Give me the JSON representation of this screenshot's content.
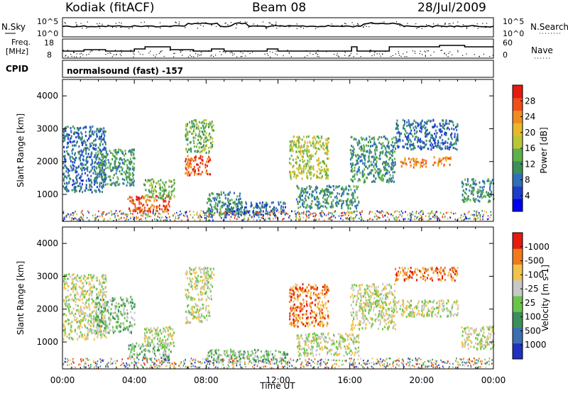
{
  "header": {
    "station": "Kodiak (fitACF)",
    "beam": "Beam 08",
    "date": "28/Jul/2009"
  },
  "status_panels": {
    "nsky_label": "N.Sky",
    "nsearch_label": "N.Search",
    "freq_label_line1": "Freq.",
    "freq_label_line2": "[MHz]",
    "nave_label": "Nave",
    "noise_ticks_left": [
      "10^5",
      "10^0"
    ],
    "noise_ticks_right": [
      "10^5",
      "10^0"
    ],
    "freq_ticks_left": [
      "18",
      "8"
    ],
    "nave_ticks_right": [
      "60",
      "0"
    ],
    "cpid_label": "CPID",
    "cpid_text": "normalsound (fast) -157"
  },
  "chart_data": [
    {
      "type": "heatmap",
      "name_hint": "power",
      "xlabel": "",
      "ylabel": "Slant Range [km]",
      "xlim_hours": [
        0,
        24
      ],
      "ylim_km": [
        180,
        4500
      ],
      "yticks": [
        "1000",
        "2000",
        "3000",
        "4000"
      ],
      "xticks": [
        "00:00",
        "04:00",
        "08:00",
        "12:00",
        "16:00",
        "20:00",
        "00:00"
      ],
      "colorbar_label": "Power [dB]",
      "colorbar_ticks": [
        "4",
        "8",
        "12",
        "16",
        "20",
        "24",
        "28"
      ],
      "colorbar_colors": [
        "#0000f0",
        "#1e3ccd",
        "#2f6fb8",
        "#3b8f5a",
        "#5fb049",
        "#b8c637",
        "#e7b92a",
        "#f08c1f",
        "#ef4e18",
        "#e51a10"
      ],
      "echo_regions": [
        {
          "t0": 0.0,
          "t1": 2.4,
          "r0": 1100,
          "r1": 3100,
          "level": 2
        },
        {
          "t0": 1.8,
          "t1": 4.0,
          "r0": 1300,
          "r1": 2400,
          "level": 3
        },
        {
          "t0": 3.6,
          "t1": 6.0,
          "r0": 500,
          "r1": 1000,
          "level": 8
        },
        {
          "t0": 4.5,
          "t1": 6.2,
          "r0": 900,
          "r1": 1500,
          "level": 4
        },
        {
          "t0": 6.8,
          "t1": 8.2,
          "r0": 1600,
          "r1": 2200,
          "level": 8
        },
        {
          "t0": 6.8,
          "t1": 8.4,
          "r0": 2300,
          "r1": 3300,
          "level": 4
        },
        {
          "t0": 8.0,
          "t1": 10.0,
          "r0": 400,
          "r1": 1100,
          "level": 3
        },
        {
          "t0": 9.0,
          "t1": 12.5,
          "r0": 400,
          "r1": 800,
          "level": 2
        },
        {
          "t0": 12.6,
          "t1": 14.8,
          "r0": 1500,
          "r1": 2800,
          "level": 5
        },
        {
          "t0": 13.0,
          "t1": 16.5,
          "r0": 600,
          "r1": 1300,
          "level": 3
        },
        {
          "t0": 16.0,
          "t1": 18.5,
          "r0": 1400,
          "r1": 2800,
          "level": 3
        },
        {
          "t0": 18.8,
          "t1": 20.3,
          "r0": 1850,
          "r1": 2150,
          "level": 7
        },
        {
          "t0": 20.6,
          "t1": 21.6,
          "r0": 1900,
          "r1": 2200,
          "level": 7
        },
        {
          "t0": 18.5,
          "t1": 22.0,
          "r0": 2400,
          "r1": 3300,
          "level": 2
        },
        {
          "t0": 22.2,
          "t1": 24.0,
          "r0": 800,
          "r1": 1500,
          "level": 3
        }
      ]
    },
    {
      "type": "heatmap",
      "name_hint": "velocity",
      "xlabel": "Time UT",
      "ylabel": "Slant Range [km]",
      "xlim_hours": [
        0,
        24
      ],
      "ylim_km": [
        180,
        4500
      ],
      "yticks": [
        "1000",
        "2000",
        "3000",
        "4000"
      ],
      "xticks": [
        "00:00",
        "04:00",
        "08:00",
        "12:00",
        "16:00",
        "20:00",
        "00:00"
      ],
      "colorbar_label": "Velocity [m s-1]",
      "colorbar_ticks": [
        "1000",
        "500",
        "100",
        "25",
        "-25",
        "-100",
        "-500",
        "-1000"
      ],
      "colorbar_colors": [
        "#2030c0",
        "#3a6fb0",
        "#3b8f5a",
        "#6ac44a",
        "#c8c8c8",
        "#f0c44a",
        "#f07a1a",
        "#e51a10"
      ],
      "echo_regions": [
        {
          "t0": 0.0,
          "t1": 2.4,
          "r0": 1100,
          "r1": 3100,
          "level": 4
        },
        {
          "t0": 1.8,
          "t1": 4.0,
          "r0": 1300,
          "r1": 2400,
          "level": 3
        },
        {
          "t0": 3.6,
          "t1": 6.0,
          "r0": 500,
          "r1": 1000,
          "level": 3
        },
        {
          "t0": 4.5,
          "t1": 6.2,
          "r0": 900,
          "r1": 1500,
          "level": 4
        },
        {
          "t0": 6.8,
          "t1": 8.2,
          "r0": 1600,
          "r1": 2200,
          "level": 4
        },
        {
          "t0": 6.8,
          "t1": 8.4,
          "r0": 2300,
          "r1": 3300,
          "level": 4
        },
        {
          "t0": 8.0,
          "t1": 12.5,
          "r0": 400,
          "r1": 800,
          "level": 3
        },
        {
          "t0": 12.6,
          "t1": 14.8,
          "r0": 1500,
          "r1": 2800,
          "level": 6
        },
        {
          "t0": 13.0,
          "t1": 16.5,
          "r0": 600,
          "r1": 1300,
          "level": 4
        },
        {
          "t0": 16.0,
          "t1": 18.5,
          "r0": 1400,
          "r1": 2800,
          "level": 4
        },
        {
          "t0": 18.5,
          "t1": 22.0,
          "r0": 1800,
          "r1": 2300,
          "level": 4
        },
        {
          "t0": 18.5,
          "t1": 22.0,
          "r0": 2900,
          "r1": 3300,
          "level": 6
        },
        {
          "t0": 22.2,
          "t1": 24.0,
          "r0": 800,
          "r1": 1500,
          "level": 4
        }
      ]
    }
  ]
}
